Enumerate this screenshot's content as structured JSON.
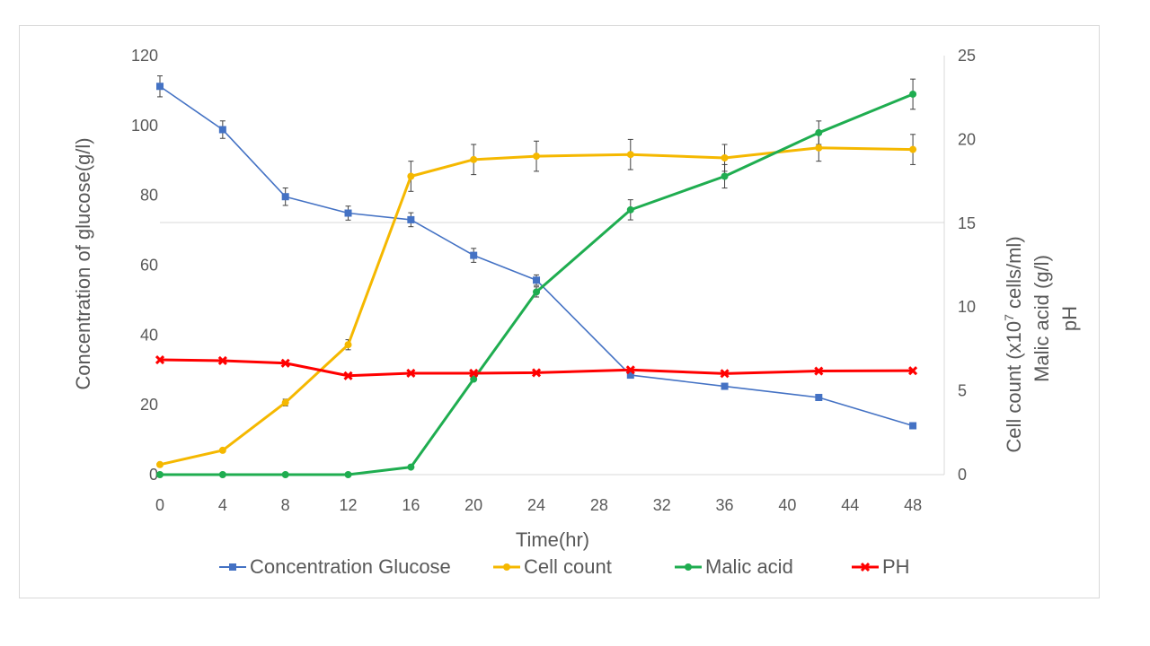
{
  "chart_data": {
    "type": "line",
    "xlabel": "Time(hr)",
    "x_ticks": [
      0,
      4,
      8,
      12,
      16,
      20,
      24,
      28,
      32,
      36,
      40,
      44,
      48
    ],
    "xlim": [
      0,
      50
    ],
    "y_left": {
      "label": "Concentration of glucose(g/l)",
      "lim": [
        0,
        120
      ],
      "ticks": [
        0,
        20,
        40,
        60,
        80,
        100,
        120
      ]
    },
    "y_right": {
      "label_lines": [
        {
          "prefix": "Cell count (x10",
          "sup": "7",
          "suffix": " cells/ml)"
        },
        {
          "text": "Malic acid (g/l)"
        },
        {
          "text": "pH"
        }
      ],
      "lim": [
        0,
        25
      ],
      "ticks": [
        0,
        5,
        10,
        15,
        20,
        25
      ]
    },
    "gridline": {
      "axis": "y_left",
      "value": 72.2
    },
    "legend_position": "bottom",
    "series": [
      {
        "name": "Concentration Glucose",
        "color": "#4472c4",
        "marker": "square",
        "axis": "left",
        "x": [
          0,
          4,
          8,
          12,
          16,
          20,
          24,
          30,
          36,
          42,
          48
        ],
        "y": [
          111.2,
          98.8,
          79.6,
          74.9,
          73.0,
          62.8,
          55.7,
          28.5,
          25.3,
          22.1,
          14.0
        ],
        "err": [
          3.0,
          2.5,
          2.5,
          2.0,
          2.0,
          2.0,
          1.5,
          0.5,
          0.5,
          0.5,
          0.5
        ]
      },
      {
        "name": "Cell count",
        "color": "#f5b800",
        "marker": "circle",
        "axis": "right",
        "x": [
          0,
          4,
          8,
          12,
          16,
          20,
          24,
          30,
          36,
          42,
          48
        ],
        "y": [
          0.6,
          1.45,
          4.3,
          7.75,
          17.8,
          18.8,
          19.0,
          19.1,
          18.9,
          19.5,
          19.4
        ],
        "err": [
          0.05,
          0.05,
          0.2,
          0.3,
          0.9,
          0.9,
          0.9,
          0.9,
          0.8,
          0.8,
          0.9
        ]
      },
      {
        "name": "Malic acid",
        "color": "#1fad50",
        "marker": "circle",
        "axis": "right",
        "x": [
          0,
          4,
          8,
          12,
          16,
          20,
          24,
          30,
          36,
          42,
          48
        ],
        "y": [
          0,
          0,
          0,
          0,
          0.45,
          5.7,
          10.9,
          15.8,
          17.8,
          20.4,
          22.7
        ],
        "err": [
          0,
          0,
          0,
          0,
          0,
          0.1,
          0.3,
          0.6,
          0.7,
          0.7,
          0.9
        ]
      },
      {
        "name": "PH",
        "color": "#ff0000",
        "marker": "x",
        "axis": "right",
        "x": [
          0,
          4,
          8,
          12,
          16,
          20,
          24,
          30,
          36,
          42,
          48
        ],
        "y": [
          6.85,
          6.8,
          6.65,
          5.9,
          6.05,
          6.05,
          6.08,
          6.25,
          6.03,
          6.18,
          6.2
        ],
        "err": [
          0,
          0,
          0,
          0,
          0,
          0,
          0,
          0,
          0,
          0,
          0
        ]
      }
    ]
  }
}
